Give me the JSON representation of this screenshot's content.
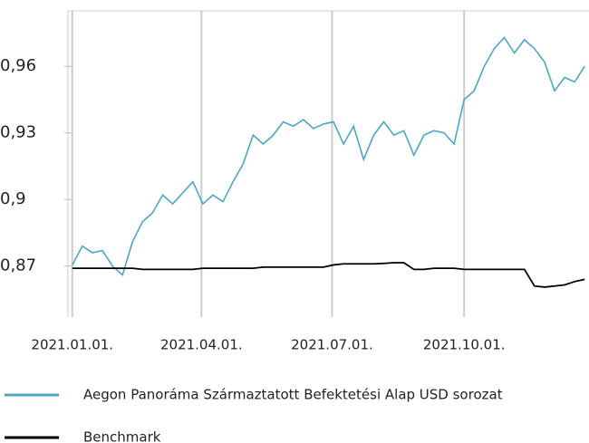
{
  "chart_data": {
    "type": "line",
    "x": [
      "2021-01-01",
      "2021-01-08",
      "2021-01-15",
      "2021-01-22",
      "2021-01-29",
      "2021-02-05",
      "2021-02-12",
      "2021-02-19",
      "2021-02-26",
      "2021-03-05",
      "2021-03-12",
      "2021-03-19",
      "2021-03-26",
      "2021-04-02",
      "2021-04-09",
      "2021-04-16",
      "2021-04-23",
      "2021-04-30",
      "2021-05-07",
      "2021-05-14",
      "2021-05-21",
      "2021-05-28",
      "2021-06-04",
      "2021-06-11",
      "2021-06-18",
      "2021-06-25",
      "2021-07-02",
      "2021-07-09",
      "2021-07-16",
      "2021-07-23",
      "2021-07-30",
      "2021-08-06",
      "2021-08-13",
      "2021-08-20",
      "2021-08-27",
      "2021-09-03",
      "2021-09-10",
      "2021-09-17",
      "2021-09-24",
      "2021-10-01",
      "2021-10-08",
      "2021-10-15",
      "2021-10-22",
      "2021-10-29",
      "2021-11-05",
      "2021-11-12",
      "2021-11-19",
      "2021-11-26",
      "2021-12-03",
      "2021-12-10",
      "2021-12-17",
      "2021-12-24"
    ],
    "series": [
      {
        "name": "Aegon Panoráma Származtatott Befektetési Alap USD sorozat",
        "color": "#4ea6c2",
        "values": [
          0.8704,
          0.879,
          0.876,
          0.877,
          0.87,
          0.866,
          0.881,
          0.89,
          0.894,
          0.902,
          0.898,
          0.903,
          0.908,
          0.898,
          0.902,
          0.899,
          0.908,
          0.916,
          0.929,
          0.925,
          0.929,
          0.935,
          0.933,
          0.936,
          0.932,
          0.934,
          0.935,
          0.925,
          0.933,
          0.918,
          0.929,
          0.935,
          0.929,
          0.931,
          0.92,
          0.929,
          0.931,
          0.93,
          0.925,
          0.945,
          0.949,
          0.96,
          0.968,
          0.973,
          0.966,
          0.972,
          0.968,
          0.962,
          0.949,
          0.955,
          0.953,
          0.96
        ]
      },
      {
        "name": "Benchmark",
        "color": "#000000",
        "values": [
          0.869,
          0.869,
          0.869,
          0.869,
          0.869,
          0.869,
          0.869,
          0.8685,
          0.8685,
          0.8685,
          0.8685,
          0.8685,
          0.8685,
          0.869,
          0.869,
          0.869,
          0.869,
          0.869,
          0.869,
          0.8695,
          0.8695,
          0.8695,
          0.8695,
          0.8695,
          0.8695,
          0.8695,
          0.8705,
          0.871,
          0.871,
          0.871,
          0.871,
          0.8712,
          0.8715,
          0.8715,
          0.8685,
          0.8685,
          0.869,
          0.869,
          0.869,
          0.8685,
          0.8685,
          0.8685,
          0.8685,
          0.8685,
          0.8685,
          0.8685,
          0.861,
          0.8605,
          0.861,
          0.8615,
          0.863,
          0.864
        ]
      }
    ],
    "xlim": [
      "2020-12-29",
      "2021-12-27"
    ],
    "xticks": [
      {
        "value": "2021-01-01",
        "label": "2021.01.01."
      },
      {
        "value": "2021-04-01",
        "label": "2021.04.01."
      },
      {
        "value": "2021-07-01",
        "label": "2021.07.01."
      },
      {
        "value": "2021-10-01",
        "label": "2021.10.01."
      }
    ],
    "ylim": [
      0.847,
      0.985
    ],
    "yticks": [
      {
        "value": 0.87,
        "label": "0,87"
      },
      {
        "value": 0.9,
        "label": "0,9"
      },
      {
        "value": 0.93,
        "label": "0,93"
      },
      {
        "value": 0.96,
        "label": "0,96"
      }
    ],
    "grid": true
  }
}
